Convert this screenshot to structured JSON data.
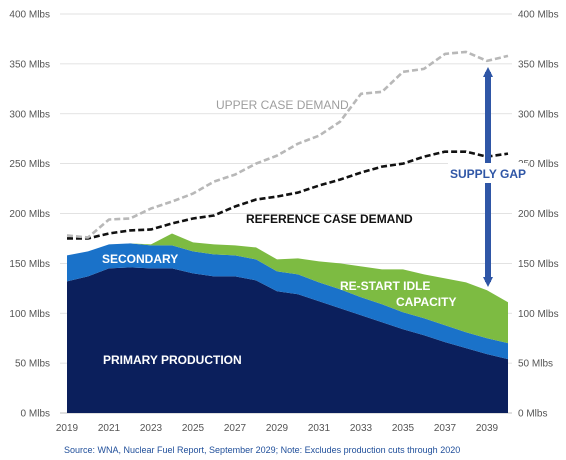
{
  "chart_data": {
    "type": "area",
    "x": [
      2019,
      2020,
      2021,
      2022,
      2023,
      2024,
      2025,
      2026,
      2027,
      2028,
      2029,
      2030,
      2031,
      2032,
      2033,
      2034,
      2035,
      2036,
      2037,
      2038,
      2039,
      2040
    ],
    "ylim": [
      0,
      400
    ],
    "y_ticks": [
      "0 Mlbs",
      "50 Mlbs",
      "100 Mlbs",
      "150 Mlbs",
      "200 Mlbs",
      "250 Mlbs",
      "300 Mlbs",
      "350 Mlbs",
      "400 Mlbs"
    ],
    "x_ticks": [
      "2019",
      "2021",
      "2023",
      "2025",
      "2027",
      "2029",
      "2031",
      "2033",
      "2035",
      "2037",
      "2039"
    ],
    "grid": true,
    "series": [
      {
        "name": "PRIMARY PRODUCTION",
        "kind": "stacked-area",
        "color": "#0b1f5c",
        "values": [
          132,
          137,
          145,
          146,
          145,
          145,
          140,
          137,
          137,
          133,
          122,
          119,
          112,
          105,
          98,
          91,
          84,
          78,
          71,
          65,
          59,
          54
        ]
      },
      {
        "name": "SECONDARY",
        "kind": "stacked-area",
        "color": "#1a72c9",
        "values": [
          26,
          25,
          24,
          24,
          23,
          23,
          22,
          22,
          21,
          21,
          20,
          20,
          19,
          19,
          18,
          18,
          17,
          17,
          17,
          16,
          16,
          16
        ]
      },
      {
        "name": "RE-START IDLE CAPACITY",
        "kind": "stacked-area",
        "color": "#7dbb42",
        "values": [
          0,
          0,
          0,
          0,
          1,
          12,
          9,
          10,
          10,
          12,
          12,
          16,
          21,
          26,
          31,
          35,
          43,
          44,
          47,
          50,
          48,
          41
        ]
      },
      {
        "name": "REFERENCE CASE DEMAND",
        "kind": "dashed-line",
        "color": "#111111",
        "values": [
          175,
          175,
          180,
          183,
          184,
          190,
          195,
          198,
          207,
          214,
          217,
          221,
          228,
          234,
          241,
          247,
          250,
          257,
          262,
          262,
          257,
          260
        ]
      },
      {
        "name": "UPPER CASE DEMAND",
        "kind": "dashed-line",
        "color": "#b8b8b8",
        "values": [
          178,
          176,
          194,
          195,
          205,
          212,
          220,
          232,
          239,
          250,
          258,
          270,
          278,
          292,
          320,
          322,
          342,
          345,
          360,
          362,
          353,
          358
        ]
      }
    ],
    "annotations": {
      "supply_gap": "SUPPLY GAP",
      "restart_line1": "RE-START IDLE",
      "restart_line2": "CAPACITY"
    },
    "colors": {
      "supply_gap": "#2f56a6",
      "reference_label": "#111111",
      "upper_label": "#9e9e9e",
      "grid": "#d9d9d9",
      "axis": "#555555"
    }
  },
  "source_note": "Source: WNA, Nuclear Fuel Report, September 2029; Note: Excludes production cuts through 2020"
}
